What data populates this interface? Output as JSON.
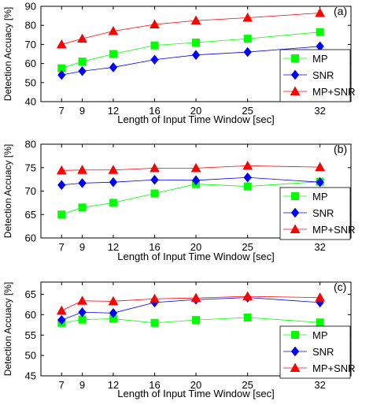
{
  "chart_data": [
    {
      "type": "line",
      "panel_label": "(a)",
      "x": [
        7,
        9,
        12,
        16,
        20,
        25,
        32
      ],
      "xticks": [
        "7",
        "9",
        "12",
        "16",
        "20",
        "25",
        "32"
      ],
      "xlabel": "Length of Input Time Window [sec]",
      "ylabel": "Detection Accuacy [%]",
      "ylim": [
        40,
        90
      ],
      "yticks": [
        40,
        50,
        60,
        70,
        80,
        90
      ],
      "legend_position": "bottom-right",
      "series": [
        {
          "name": "MP",
          "marker": "square",
          "color": "#00ff00",
          "values": [
            57.5,
            61,
            65,
            69.5,
            71,
            73,
            76.5
          ]
        },
        {
          "name": "SNR",
          "marker": "diamond",
          "color": "#0000ff",
          "values": [
            54,
            56,
            58,
            62,
            64.5,
            66,
            69
          ]
        },
        {
          "name": "MP+SNR",
          "marker": "triangle",
          "color": "#ff0000",
          "values": [
            70,
            73,
            77,
            80.5,
            82.5,
            84,
            86.5
          ]
        }
      ]
    },
    {
      "type": "line",
      "panel_label": "(b)",
      "x": [
        7,
        9,
        12,
        16,
        20,
        25,
        32
      ],
      "xticks": [
        "7",
        "9",
        "12",
        "16",
        "20",
        "25",
        "32"
      ],
      "xlabel": "Length of Input Time Window [sec]",
      "ylabel": "Detection Accuacy [%]",
      "ylim": [
        60,
        80
      ],
      "yticks": [
        60,
        65,
        70,
        75,
        80
      ],
      "legend_position": "bottom-right",
      "series": [
        {
          "name": "MP",
          "marker": "square",
          "color": "#00ff00",
          "values": [
            65,
            66.5,
            67.5,
            69.5,
            71.5,
            71,
            72
          ]
        },
        {
          "name": "SNR",
          "marker": "diamond",
          "color": "#0000ff",
          "values": [
            71.3,
            71.7,
            71.9,
            72.4,
            72.3,
            72.9,
            71.9
          ]
        },
        {
          "name": "MP+SNR",
          "marker": "triangle",
          "color": "#ff0000",
          "values": [
            74.4,
            74.5,
            74.5,
            74.9,
            74.9,
            75.4,
            75.1
          ]
        }
      ]
    },
    {
      "type": "line",
      "panel_label": "(c)",
      "x": [
        7,
        9,
        12,
        16,
        20,
        25,
        32
      ],
      "xticks": [
        "7",
        "9",
        "12",
        "16",
        "20",
        "25",
        "32"
      ],
      "xlabel": "Length of Input Time Window [sec]",
      "ylabel": "Detection Accuacy [%]",
      "ylim": [
        45,
        68
      ],
      "yticks": [
        45,
        50,
        55,
        60,
        65
      ],
      "legend_position": "bottom-right",
      "series": [
        {
          "name": "MP",
          "marker": "square",
          "color": "#00ff00",
          "values": [
            58,
            58.8,
            59,
            58,
            58.7,
            59.3,
            58.1
          ]
        },
        {
          "name": "SNR",
          "marker": "diamond",
          "color": "#0000ff",
          "values": [
            58.7,
            60.6,
            60.4,
            63,
            63.7,
            64.2,
            63
          ]
        },
        {
          "name": "MP+SNR",
          "marker": "triangle",
          "color": "#ff0000",
          "values": [
            61,
            63.4,
            63.3,
            63.9,
            64.1,
            64.5,
            64.2
          ]
        }
      ]
    }
  ]
}
